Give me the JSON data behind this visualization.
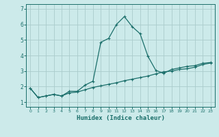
{
  "title": "",
  "xlabel": "Humidex (Indice chaleur)",
  "ylabel": "",
  "background_color": "#cceaea",
  "grid_color": "#aacccc",
  "line_color": "#1a6e6a",
  "xlim": [
    -0.5,
    23.5
  ],
  "ylim": [
    0.7,
    7.3
  ],
  "x_ticks": [
    0,
    1,
    2,
    3,
    4,
    5,
    6,
    7,
    8,
    9,
    10,
    11,
    12,
    13,
    14,
    15,
    16,
    17,
    18,
    19,
    20,
    21,
    22,
    23
  ],
  "y_ticks": [
    1,
    2,
    3,
    4,
    5,
    6,
    7
  ],
  "curve1_x": [
    0,
    1,
    2,
    3,
    4,
    5,
    6,
    7,
    8,
    9,
    10,
    11,
    12,
    13,
    14,
    15,
    16,
    17,
    18,
    19,
    20,
    21,
    22,
    23
  ],
  "curve1_y": [
    1.9,
    1.3,
    1.4,
    1.5,
    1.4,
    1.7,
    1.7,
    2.1,
    2.35,
    4.85,
    5.1,
    6.0,
    6.5,
    5.85,
    5.4,
    3.95,
    3.05,
    2.85,
    3.1,
    3.2,
    3.3,
    3.35,
    3.5,
    3.55
  ],
  "curve2_x": [
    0,
    1,
    2,
    3,
    4,
    5,
    6,
    7,
    8,
    9,
    10,
    11,
    12,
    13,
    14,
    15,
    16,
    17,
    18,
    19,
    20,
    21,
    22,
    23
  ],
  "curve2_y": [
    1.9,
    1.3,
    1.4,
    1.5,
    1.4,
    1.6,
    1.65,
    1.8,
    1.95,
    2.05,
    2.15,
    2.25,
    2.38,
    2.48,
    2.58,
    2.68,
    2.82,
    2.95,
    3.0,
    3.1,
    3.15,
    3.25,
    3.42,
    3.52
  ]
}
